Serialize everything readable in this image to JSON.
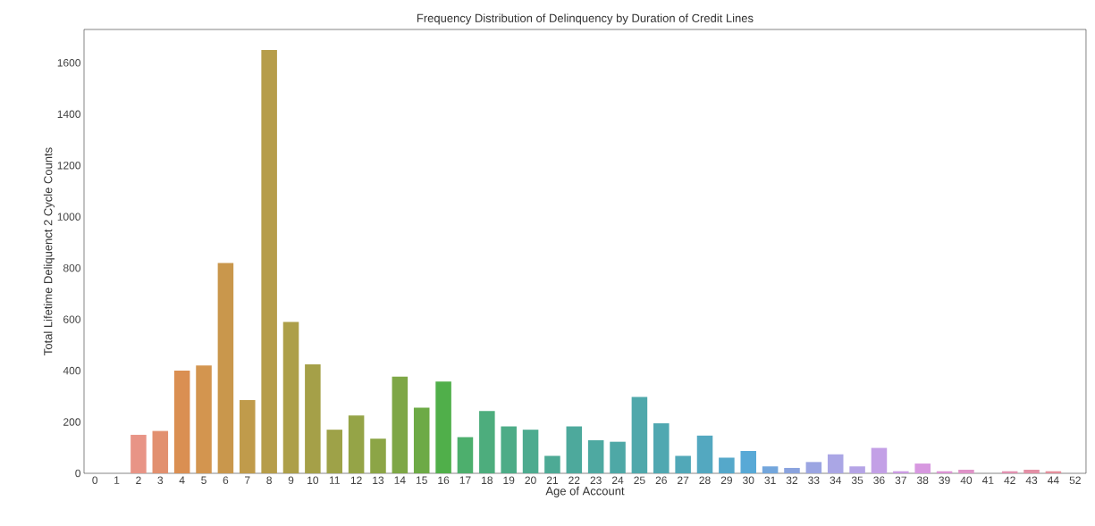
{
  "chart_data": {
    "type": "bar",
    "title": "Frequency Distribution of Delinquency by Duration of Credit Lines",
    "xlabel": "Age of Account",
    "ylabel": "Total Lifetime Deliquenct 2 Cycle Counts",
    "categories": [
      "0",
      "1",
      "2",
      "3",
      "4",
      "5",
      "6",
      "7",
      "8",
      "9",
      "10",
      "11",
      "12",
      "13",
      "14",
      "15",
      "16",
      "17",
      "18",
      "19",
      "20",
      "21",
      "22",
      "23",
      "24",
      "25",
      "26",
      "27",
      "28",
      "29",
      "30",
      "31",
      "32",
      "33",
      "34",
      "35",
      "36",
      "37",
      "38",
      "39",
      "40",
      "41",
      "42",
      "43",
      "44",
      "52"
    ],
    "values": [
      0,
      0,
      150,
      165,
      400,
      420,
      820,
      285,
      1650,
      590,
      425,
      170,
      225,
      135,
      377,
      256,
      358,
      141,
      243,
      183,
      170,
      68,
      183,
      129,
      123,
      298,
      195,
      68,
      147,
      61,
      87,
      27,
      21,
      44,
      74,
      27,
      99,
      8,
      38,
      8,
      14,
      0,
      8,
      14,
      8,
      0
    ],
    "colors": [
      "#e8968f",
      "#e8958a",
      "#e89486",
      "#e2906f",
      "#da8f52",
      "#d3954f",
      "#c9974c",
      "#c09b4b",
      "#b69d4a",
      "#ad9f49",
      "#a5a048",
      "#9ea248",
      "#95a447",
      "#8ca546",
      "#7ea746",
      "#6daa46",
      "#50af4a",
      "#4daf6d",
      "#4dad7d",
      "#4dac87",
      "#4dab8f",
      "#4daa95",
      "#4da99c",
      "#4ea9a1",
      "#4ea8a6",
      "#4fa8ab",
      "#50a8b1",
      "#51a8b8",
      "#53a8c0",
      "#55a8ca",
      "#58a9d6",
      "#73a6dc",
      "#8aa3de",
      "#9ba5e2",
      "#aaa6e5",
      "#b5a4e6",
      "#c3a0e6",
      "#cc9be4",
      "#d798e0",
      "#dc94d5",
      "#df93c8",
      "#e092bc",
      "#e290b0",
      "#e38fa5",
      "#e48e9b",
      "#e58c92"
    ],
    "ylim": [
      0,
      1730
    ],
    "yticks": [
      0,
      200,
      400,
      600,
      800,
      1000,
      1200,
      1400,
      1600
    ],
    "grid": false
  }
}
